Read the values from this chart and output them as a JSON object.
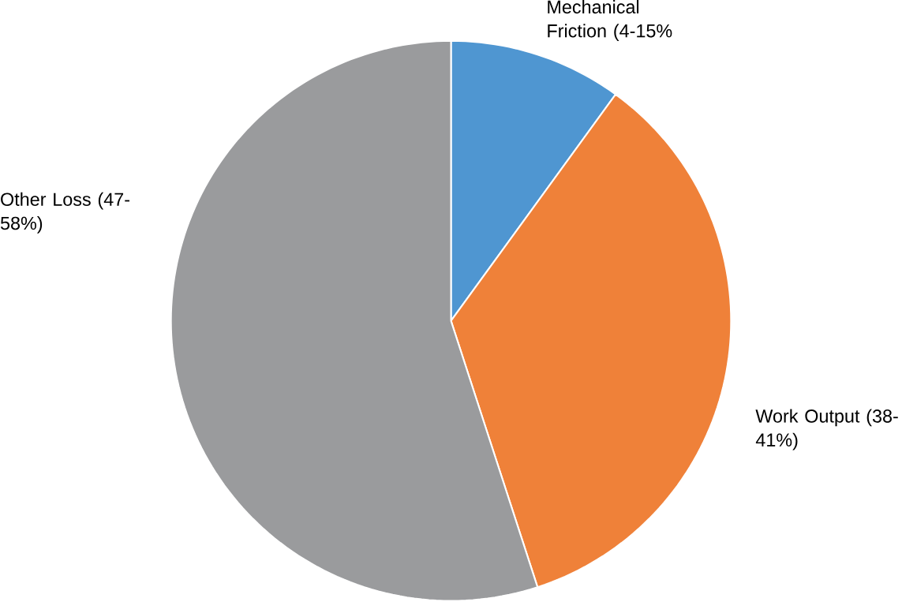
{
  "chart_data": {
    "type": "pie",
    "categories": [
      "Mechanical Friction (4-15%",
      "Work Output (38-41%)",
      "Other Loss (47-58%)"
    ],
    "values": [
      10,
      35,
      55
    ],
    "colors": [
      "#4f96d1",
      "#ef8139",
      "#9a9b9d"
    ]
  }
}
